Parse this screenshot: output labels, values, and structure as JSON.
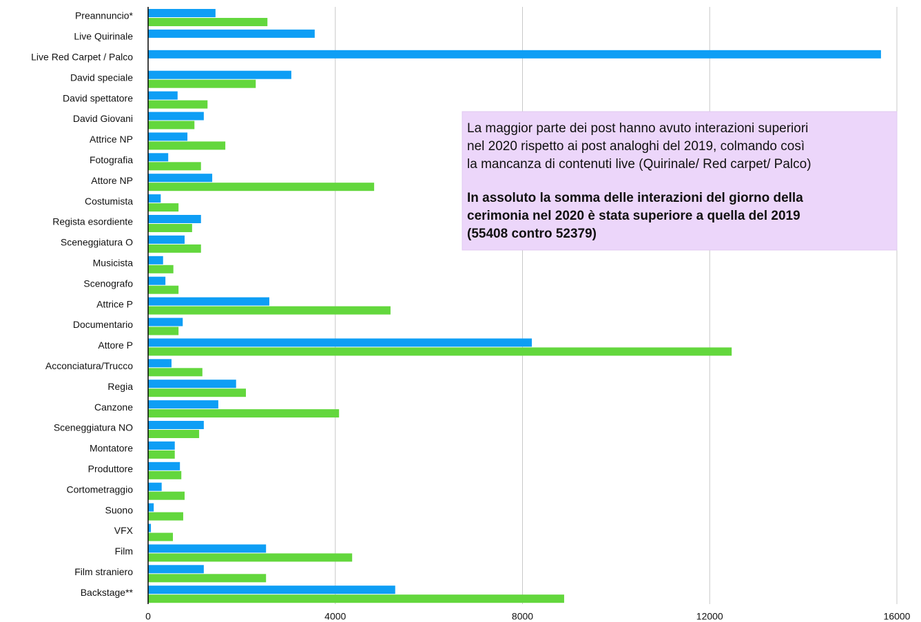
{
  "chart_data": {
    "type": "bar",
    "orientation": "horizontal",
    "categories": [
      "Preannuncio*",
      "Live Quirinale",
      "Live Red Carpet / Palco",
      "David speciale",
      "David spettatore",
      "David Giovani",
      "Attrice NP",
      "Fotografia",
      "Attore NP",
      "Costumista",
      "Regista esordiente",
      "Sceneggiatura O",
      "Musicista",
      "Scenografo",
      "Attrice P",
      "Documentario",
      "Attore P",
      "Acconciatura/Trucco",
      "Regia",
      "Canzone",
      "Sceneggiatura NO",
      "Montatore",
      "Produttore",
      "Cortometraggio",
      "Suono",
      "VFX",
      "Film",
      "Film straniero",
      "Backstage**"
    ],
    "series": [
      {
        "color": "#0e9ef5",
        "values": [
          1440,
          3560,
          15660,
          3060,
          630,
          1190,
          840,
          430,
          1370,
          270,
          1130,
          780,
          320,
          370,
          2590,
          740,
          8200,
          500,
          1880,
          1500,
          1190,
          570,
          680,
          290,
          120,
          60,
          2520,
          1190,
          5280
        ]
      },
      {
        "color": "#63d73d",
        "values": [
          2550,
          null,
          null,
          2300,
          1270,
          990,
          1650,
          1130,
          4830,
          650,
          940,
          1130,
          540,
          650,
          5180,
          650,
          12470,
          1160,
          2090,
          4080,
          1090,
          570,
          710,
          780,
          750,
          530,
          4360,
          2520,
          8890
        ]
      }
    ],
    "xlim": [
      0,
      16000
    ],
    "xticks": [
      0,
      4000,
      8000,
      12000,
      16000
    ],
    "grid": true,
    "annotation": {
      "lines": [
        "La maggior parte dei post hanno avuto interazioni superiori",
        "nel 2020 rispetto ai post analoghi del 2019, colmando così",
        "la mancanza di contenuti live (Quirinale/ Red carpet/ Palco)"
      ],
      "bold_lines": [
        "In assoluto la somma delle interazioni del giorno della",
        "cerimonia nel 2020 è stata superiore a quella del 2019",
        "(55408 contro 52379)"
      ]
    }
  }
}
